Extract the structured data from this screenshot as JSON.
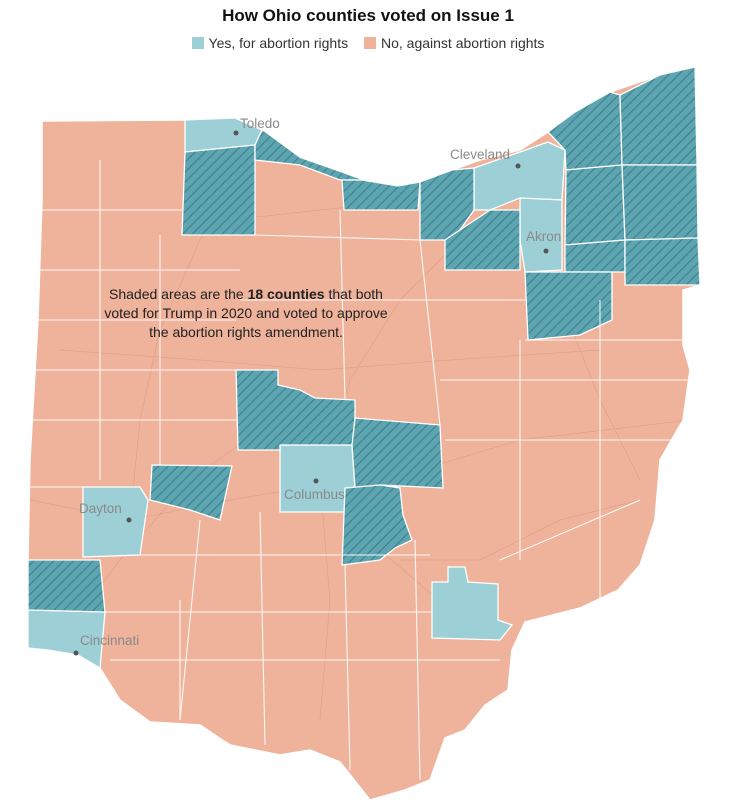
{
  "title": "How Ohio counties voted on Issue 1",
  "legend": [
    {
      "label": "Yes, for abortion rights",
      "color": "#9ccfd6"
    },
    {
      "label": "No, against abortion rights",
      "color": "#efb29b"
    }
  ],
  "colors": {
    "yes": "#9ccfd6",
    "no": "#efb29b",
    "hatched_yes": "#5ea5b2",
    "hatch_line": "#3d7f8c",
    "border": "#ffffff"
  },
  "annotation": {
    "before": "Shaded areas are the ",
    "bold": "18 counties",
    "after": " that both voted for Trump in 2020 and voted to approve the abortion rights amendment."
  },
  "cities": [
    {
      "name": "Toledo"
    },
    {
      "name": "Cleveland"
    },
    {
      "name": "Akron"
    },
    {
      "name": "Dayton"
    },
    {
      "name": "Columbus"
    },
    {
      "name": "Cincinnati"
    }
  ]
}
